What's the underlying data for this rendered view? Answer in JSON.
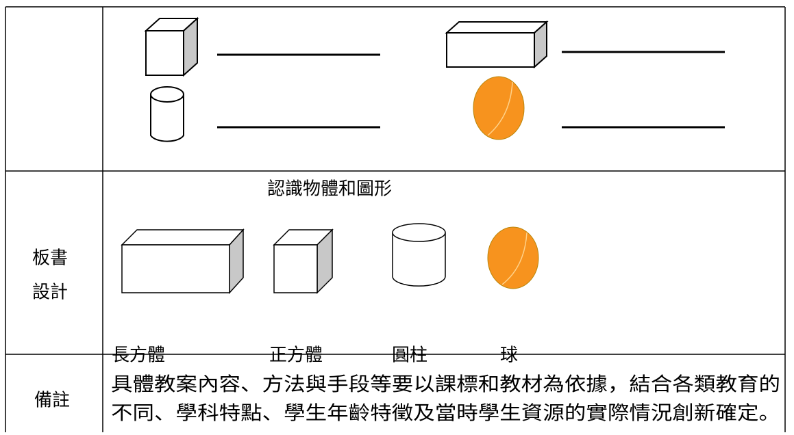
{
  "board_design": {
    "label_lines": [
      "板書",
      "設計"
    ],
    "title": "認識物體和圖形",
    "shapes": [
      "長方體",
      "正方體",
      "圓柱",
      "球"
    ]
  },
  "remarks": {
    "label": "備註",
    "lines": [
      "具體教案內容、方法與手段等要以課標和教材為依據，結合各類教育的",
      "不同、學科特點、學生年齡特徵及當時學生資源的實際情況創新確定。"
    ]
  }
}
